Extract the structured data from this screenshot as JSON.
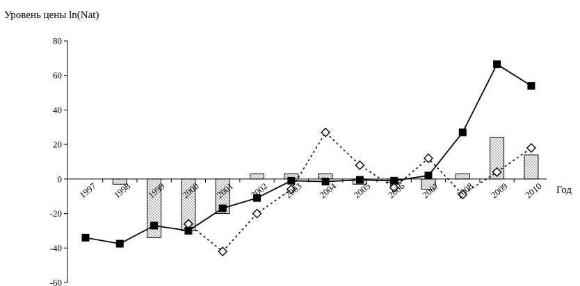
{
  "chart_data": {
    "type": "bar",
    "title": "",
    "ylabel": "Уровень цены ln(Nat)",
    "xlabel": "Год",
    "ylim": [
      -60,
      80
    ],
    "yticks": [
      -60,
      -40,
      -20,
      0,
      20,
      40,
      60,
      80
    ],
    "categories": [
      "1997",
      "1998",
      "1999",
      "2000",
      "2001",
      "2002",
      "2003",
      "2004",
      "2005",
      "2006",
      "2007",
      "2008",
      "2009",
      "2010"
    ],
    "bars": [
      null,
      -3,
      -34,
      -30,
      -20,
      3,
      3,
      3,
      -3,
      -2,
      -6,
      3,
      24,
      14
    ],
    "series": [
      {
        "style": "solid-line-filled-square",
        "values": [
          -34,
          -37.5,
          -27,
          -30,
          -17,
          -11,
          -1,
          -1.5,
          -0.5,
          -1,
          2,
          27,
          66.5,
          54
        ]
      },
      {
        "style": "dotted-line-open-diamond",
        "values": [
          null,
          null,
          null,
          -26,
          -42,
          -20,
          -6,
          27,
          8,
          -5,
          12,
          -9,
          4,
          18
        ]
      }
    ],
    "grid": false,
    "legend": "none"
  }
}
